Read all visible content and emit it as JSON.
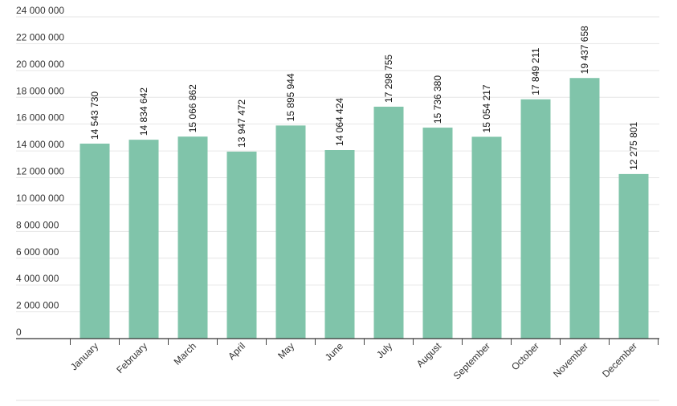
{
  "chart_data": {
    "type": "bar",
    "categories": [
      "January",
      "February",
      "March",
      "April",
      "May",
      "June",
      "July",
      "August",
      "September",
      "October",
      "November",
      "December"
    ],
    "values": [
      14543730,
      14834642,
      15066862,
      13947472,
      15895944,
      14064424,
      17298755,
      15736380,
      15054217,
      17849211,
      19437658,
      12275801
    ],
    "data_labels": [
      "14 543 730",
      "14 834 642",
      "15 066 862",
      "13 947 472",
      "15 895 944",
      "14 064 424",
      "17 298 755",
      "15 736 380",
      "15 054 217",
      "17 849 211",
      "19 437 658",
      "12 275 801"
    ],
    "yticks": [
      "0",
      "2 000 000",
      "4 000 000",
      "6 000 000",
      "8 000 000",
      "10 000 000",
      "12 000 000",
      "14 000 000",
      "16 000 000",
      "18 000 000",
      "20 000 000",
      "22 000 000",
      "24 000 000"
    ],
    "ylim": [
      0,
      24000000
    ],
    "grid": true,
    "bar_color": "#80c4aa",
    "title": "",
    "xlabel": "",
    "ylabel": ""
  }
}
